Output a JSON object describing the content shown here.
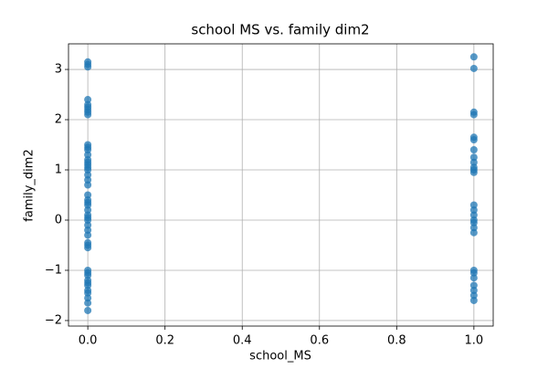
{
  "chart_data": {
    "type": "scatter",
    "title": "school MS vs. family dim2",
    "xlabel": "school_MS",
    "ylabel": "family_dim2",
    "x": [
      0,
      0,
      0,
      0,
      0,
      0,
      0,
      0,
      0,
      0,
      0,
      0,
      0,
      0,
      0,
      0,
      0,
      0,
      0,
      0,
      0,
      0,
      0,
      0,
      0,
      0,
      0,
      0,
      0,
      0,
      0,
      0,
      0,
      0,
      0,
      0,
      0,
      0,
      0,
      0,
      0,
      0,
      0,
      0,
      0,
      0,
      1,
      1,
      1,
      1,
      1,
      1,
      1,
      1,
      1,
      1,
      1,
      1,
      1,
      1,
      1,
      1,
      1,
      1,
      1,
      1,
      1,
      1,
      1,
      1,
      1,
      1
    ],
    "values": [
      3.15,
      3.1,
      3.05,
      2.4,
      2.3,
      2.25,
      2.2,
      2.15,
      2.1,
      1.5,
      1.45,
      1.4,
      1.3,
      1.2,
      1.15,
      1.1,
      1.05,
      1.0,
      0.9,
      0.8,
      0.7,
      0.5,
      0.4,
      0.35,
      0.3,
      0.2,
      0.1,
      0.05,
      0,
      -0.1,
      -0.2,
      -0.3,
      -0.45,
      -0.5,
      -0.55,
      -1.0,
      -1.05,
      -1.1,
      -1.2,
      -1.25,
      -1.3,
      -1.4,
      -1.45,
      -1.55,
      -1.65,
      -1.8,
      3.25,
      3.02,
      2.15,
      2.1,
      1.65,
      1.6,
      1.4,
      1.25,
      1.15,
      1.05,
      1.0,
      0.95,
      0.3,
      0.2,
      0.1,
      0.0,
      -0.05,
      -0.15,
      -0.25,
      -1.0,
      -1.05,
      -1.15,
      -1.3,
      -1.4,
      -1.5,
      -1.6
    ],
    "color": "#1f77b4",
    "xlim": [
      -0.05,
      1.05
    ],
    "xticks": [
      {
        "value": 0,
        "label": "0.0"
      },
      0.2,
      0.4,
      0.6,
      0.8,
      {
        "value": 1,
        "label": "1.0"
      }
    ],
    "ylim": [
      -2.11,
      3.51
    ],
    "yticks": [
      {
        "value": -2,
        "label": "−2"
      },
      {
        "value": -1,
        "label": "−1"
      },
      0,
      1,
      2,
      3
    ],
    "grid": true
  }
}
